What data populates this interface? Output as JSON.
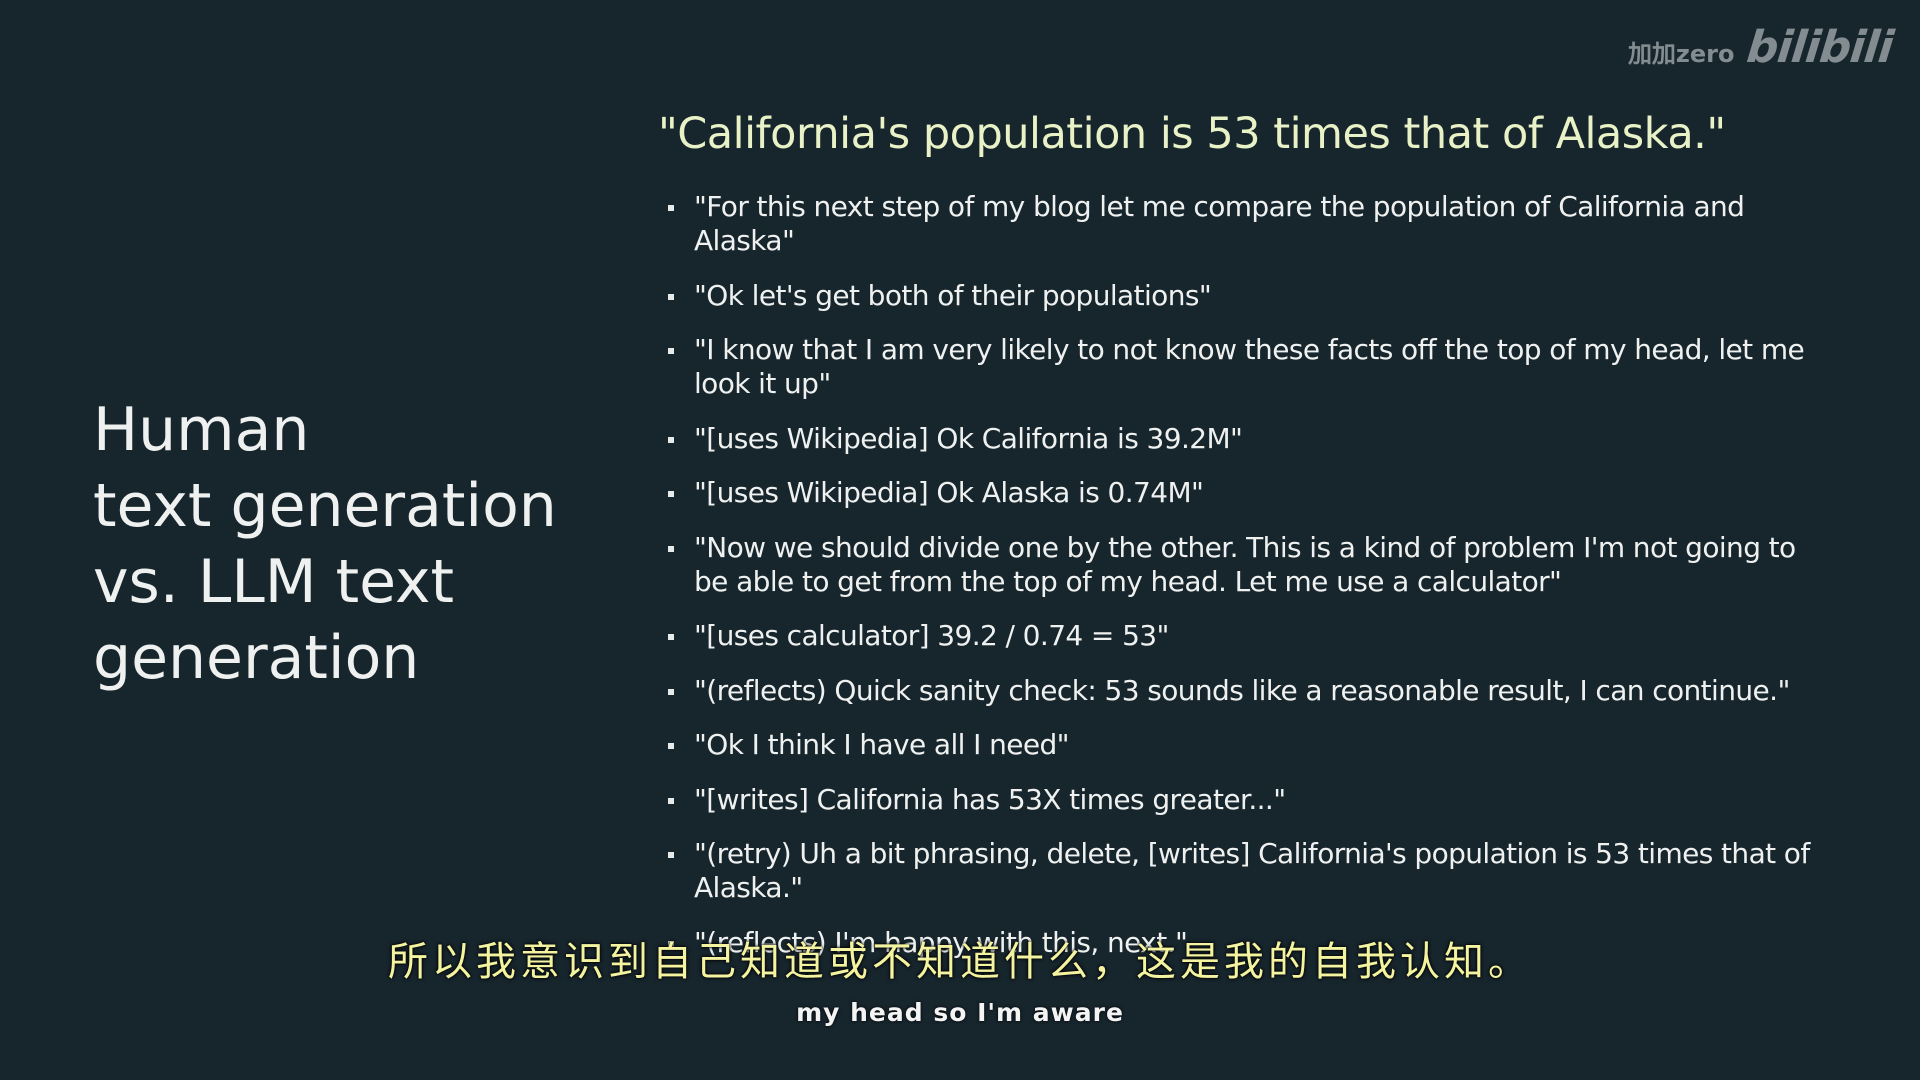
{
  "watermark": {
    "user": "加加zero",
    "logo": "bilibili"
  },
  "slide": {
    "title_lines": [
      "Human",
      "text generation",
      "vs. LLM text",
      "generation"
    ],
    "headline": "\"California's population is 53 times that of Alaska.\"",
    "bullets": [
      "\"For this next step of my blog let me compare the population of California and Alaska\"",
      "\"Ok let's get both of their populations\"",
      "\"I know that I am very likely to not know these facts off the top of my head, let me look it up\"",
      "\"[uses Wikipedia] Ok California is 39.2M\"",
      "\"[uses Wikipedia] Ok Alaska is 0.74M\"",
      "\"Now we should divide one by the other. This is a kind of problem I'm not going to be able to get from the top of my head. Let me use a calculator\"",
      "\"[uses calculator] 39.2 / 0.74 = 53\"",
      "\"(reflects) Quick sanity check: 53 sounds like a reasonable result, I can continue.\"",
      "\"Ok I think I have all I need\"",
      "\"[writes] California has 53X times greater...\"",
      "\"(retry) Uh a bit phrasing, delete, [writes] California's population is 53 times that of Alaska.\"",
      "\"(reflects) I'm happy with this, next.\""
    ]
  },
  "subtitles": {
    "chinese": "所以我意识到自己知道或不知道什么，这是我的自我认知。",
    "english": "my head so I'm aware"
  }
}
